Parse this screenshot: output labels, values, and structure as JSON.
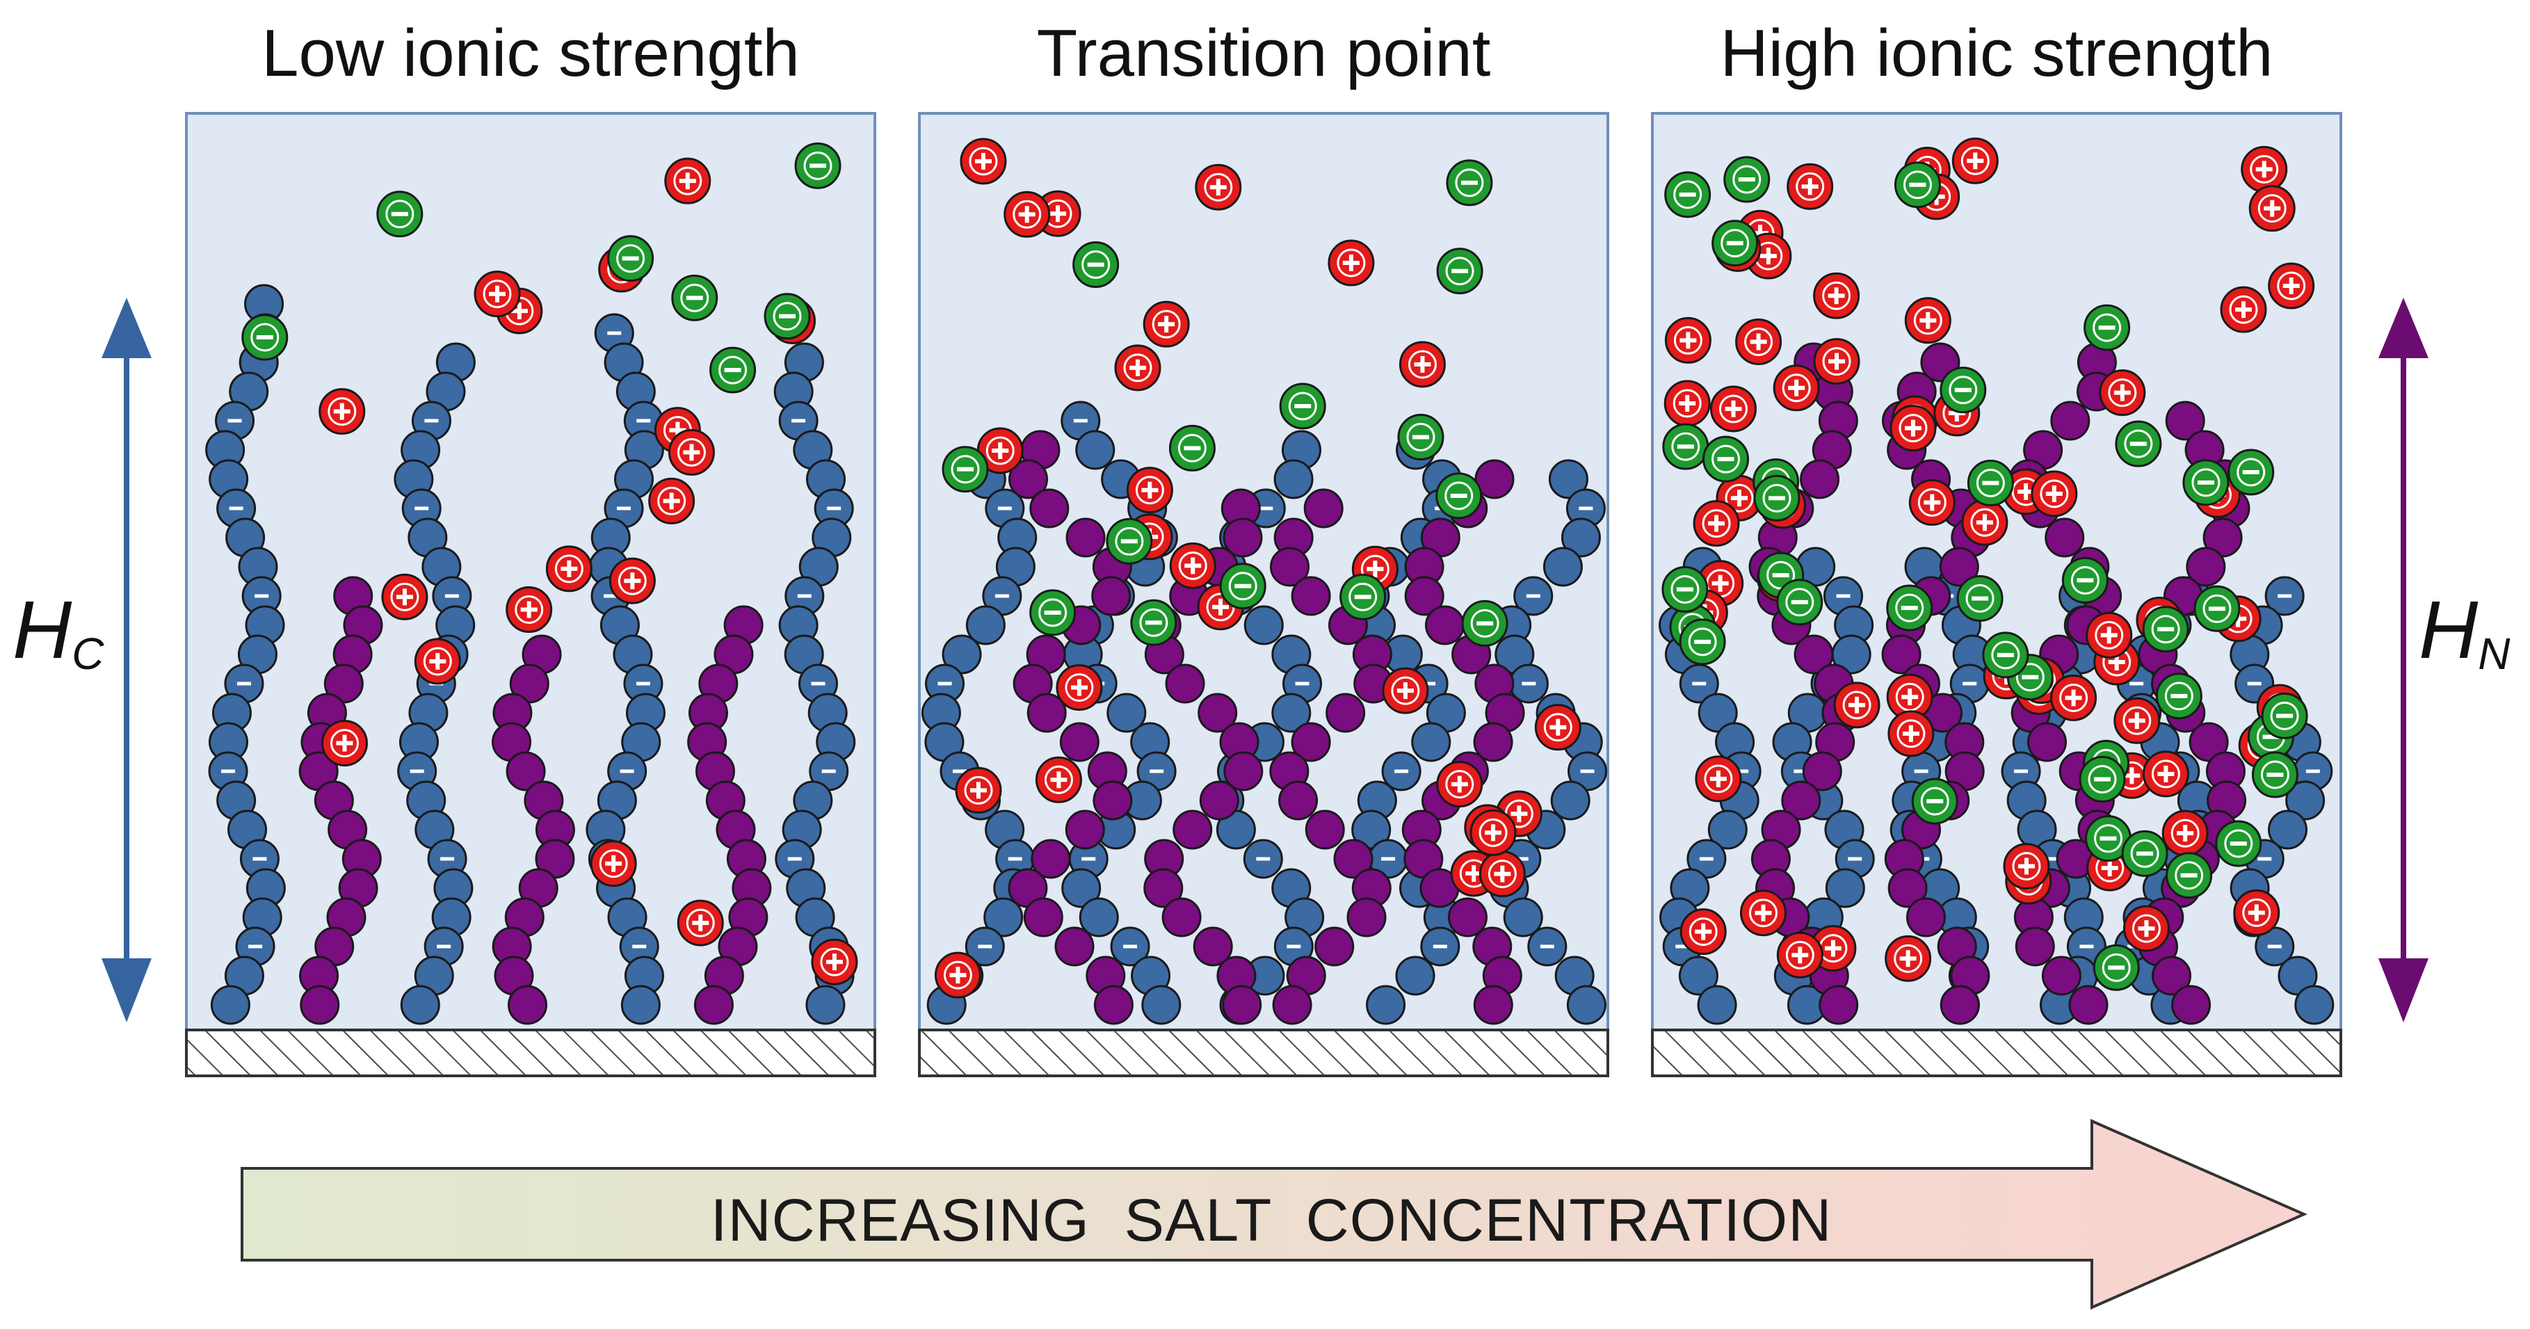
{
  "panels": [
    {
      "title": "Low ionic strength"
    },
    {
      "title": "Transition point"
    },
    {
      "title": "High ionic strength"
    }
  ],
  "side_labels": {
    "left": {
      "main": "H",
      "sub": "C"
    },
    "right": {
      "main": "H",
      "sub": "N"
    }
  },
  "arrow_label": "INCREASING  SALT  CONCENTRATION",
  "ion_symbols": {
    "cation": "+",
    "anion": "-"
  },
  "colors": {
    "panel_fill": "#dfe8f3",
    "panel_border": "#6f8fb8",
    "polyanion_chain": "#3c6aa3",
    "polycation_chain": "#7a0d7f",
    "cation_ion": "#e31b1b",
    "anion_ion": "#1f9a2e",
    "left_arrow": "#3564a0",
    "right_arrow": "#6a0c70",
    "arrow_gradient_start": "#e0e9cf",
    "arrow_gradient_end": "#f9d3cf"
  },
  "legend_semantics": {
    "blue_chain": "negatively charged polyelectrolyte brush",
    "purple_chain": "positively charged polyelectrolyte"
  }
}
